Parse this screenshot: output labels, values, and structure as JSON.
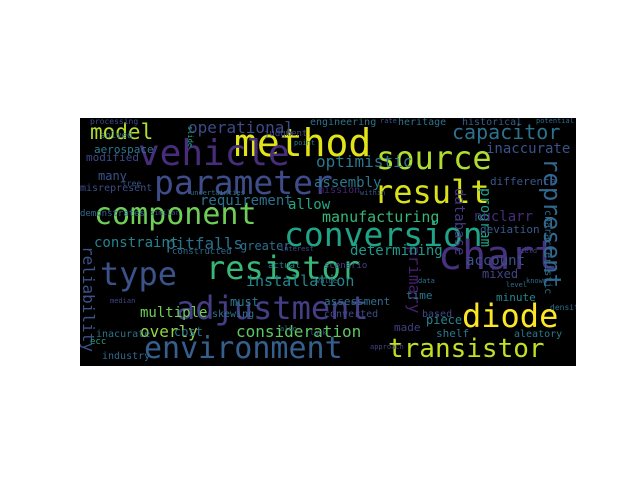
{
  "wordcloud": {
    "background": "#000000",
    "words": [
      {
        "text": "method",
        "color": "#e3e418"
      },
      {
        "text": "vehicle",
        "color": "#472d7b"
      },
      {
        "text": "source",
        "color": "#b0dd2f"
      },
      {
        "text": "parameter",
        "color": "#3e4c8a"
      },
      {
        "text": "result",
        "color": "#d8e219"
      },
      {
        "text": "component",
        "color": "#6ece58"
      },
      {
        "text": "conversion",
        "color": "#20a386"
      },
      {
        "text": "resistor",
        "color": "#37b878"
      },
      {
        "text": "type",
        "color": "#3b528b"
      },
      {
        "text": "chart",
        "color": "#46327e"
      },
      {
        "text": "adjustment",
        "color": "#433e85"
      },
      {
        "text": "diode",
        "color": "#fde725"
      },
      {
        "text": "environment",
        "color": "#355f8d"
      },
      {
        "text": "transistor",
        "color": "#c2df23"
      },
      {
        "text": "represent",
        "color": "#31688e"
      },
      {
        "text": "capacitor",
        "color": "#2c728e"
      },
      {
        "text": "model",
        "color": "#b5de2b"
      },
      {
        "text": "operational",
        "color": "#3e4a89"
      },
      {
        "text": "optimistic",
        "color": "#2a788e"
      },
      {
        "text": "pitfalls",
        "color": "#2d708e"
      },
      {
        "text": "consideration",
        "color": "#5ec962"
      },
      {
        "text": "reliability",
        "color": "#3b528b"
      },
      {
        "text": "installation",
        "color": "#24868e"
      },
      {
        "text": "manufacturing",
        "color": "#35b779"
      },
      {
        "text": "database",
        "color": "#443a83"
      },
      {
        "text": "primary",
        "color": "#481f70"
      },
      {
        "text": "assembly",
        "color": "#2a788e"
      },
      {
        "text": "requirement",
        "color": "#2c728e"
      },
      {
        "text": "overly",
        "color": "#90d743"
      },
      {
        "text": "multiple",
        "color": "#6ece58"
      },
      {
        "text": "determining",
        "color": "#1f988b"
      },
      {
        "text": "constraint",
        "color": "#26828e"
      },
      {
        "text": "inaccurate",
        "color": "#3b528b"
      },
      {
        "text": "program",
        "color": "#1fa188"
      },
      {
        "text": "account",
        "color": "#3b528b"
      },
      {
        "text": "nuclarr",
        "color": "#472c7a"
      },
      {
        "text": "allow",
        "color": "#22a884"
      },
      {
        "text": "aerospace",
        "color": "#2a788e"
      },
      {
        "text": "modified",
        "color": "#3e4989"
      },
      {
        "text": "many",
        "color": "#3b528b"
      },
      {
        "text": "cost",
        "color": "#2c728e"
      },
      {
        "text": "must",
        "color": "#297a8e"
      },
      {
        "text": "assessment",
        "color": "#2d708e"
      },
      {
        "text": "greater",
        "color": "#2e6f8e"
      },
      {
        "text": "piece",
        "color": "#25858e"
      },
      {
        "text": "shelf",
        "color": "#29798e"
      },
      {
        "text": "mixed",
        "color": "#414487"
      },
      {
        "text": "heritage",
        "color": "#2c738e"
      },
      {
        "text": "historical",
        "color": "#365c8d"
      },
      {
        "text": "engineering",
        "color": "#2c738e"
      },
      {
        "text": "difference",
        "color": "#38588c"
      },
      {
        "text": "deviation",
        "color": "#38588c"
      },
      {
        "text": "characteristic",
        "color": "#2f6c8e"
      },
      {
        "text": "mission",
        "color": "#482475"
      },
      {
        "text": "converted",
        "color": "#3e4a89"
      },
      {
        "text": "time",
        "color": "#2a788e"
      },
      {
        "text": "minute",
        "color": "#24868e"
      },
      {
        "text": "made",
        "color": "#433e85"
      },
      {
        "text": "based",
        "color": "#3f4788"
      },
      {
        "text": "aleatory",
        "color": "#29798e"
      },
      {
        "text": "inacurate",
        "color": "#2c728e"
      },
      {
        "text": "industry",
        "color": "#31688e"
      },
      {
        "text": "misrepresent",
        "color": "#3d4d8a"
      },
      {
        "text": "demonstrates",
        "color": "#31688e"
      },
      {
        "text": "solved",
        "color": "#2e6e8e"
      },
      {
        "text": "processing",
        "color": "#3e4c8a"
      },
      {
        "text": "constructed",
        "color": "#2e6e8e"
      },
      {
        "text": "tree",
        "color": "#38588c"
      },
      {
        "text": "skewing",
        "color": "#2c738e"
      },
      {
        "text": "judgment",
        "color": "#3e4a89"
      },
      {
        "text": "scenario",
        "color": "#414487"
      },
      {
        "text": "density",
        "color": "#2d708e"
      },
      {
        "text": "ecc",
        "color": "#22a884"
      },
      {
        "text": "actual",
        "color": "#2a788e"
      },
      {
        "text": "uncertainties",
        "color": "#2d708e"
      },
      {
        "text": "median",
        "color": "#404588"
      },
      {
        "text": "potential",
        "color": "#2f6c8e"
      },
      {
        "text": "similar",
        "color": "#3e4a89"
      },
      {
        "text": "within",
        "color": "#38588c"
      },
      {
        "text": "value",
        "color": "#2c728e"
      },
      {
        "text": "also",
        "color": "#31688e"
      },
      {
        "text": "rate",
        "color": "#3b528b"
      },
      {
        "text": "point",
        "color": "#2a788e"
      },
      {
        "text": "field",
        "color": "#414487"
      },
      {
        "text": "level",
        "color": "#2e6e8e"
      },
      {
        "text": "interest",
        "color": "#3e4a89"
      },
      {
        "text": "lack",
        "color": "#38588c"
      },
      {
        "text": "slide",
        "color": "#22a884"
      },
      {
        "text": "known",
        "color": "#31688e"
      },
      {
        "text": "data",
        "color": "#2c728e"
      },
      {
        "text": "approach",
        "color": "#414487"
      }
    ]
  }
}
